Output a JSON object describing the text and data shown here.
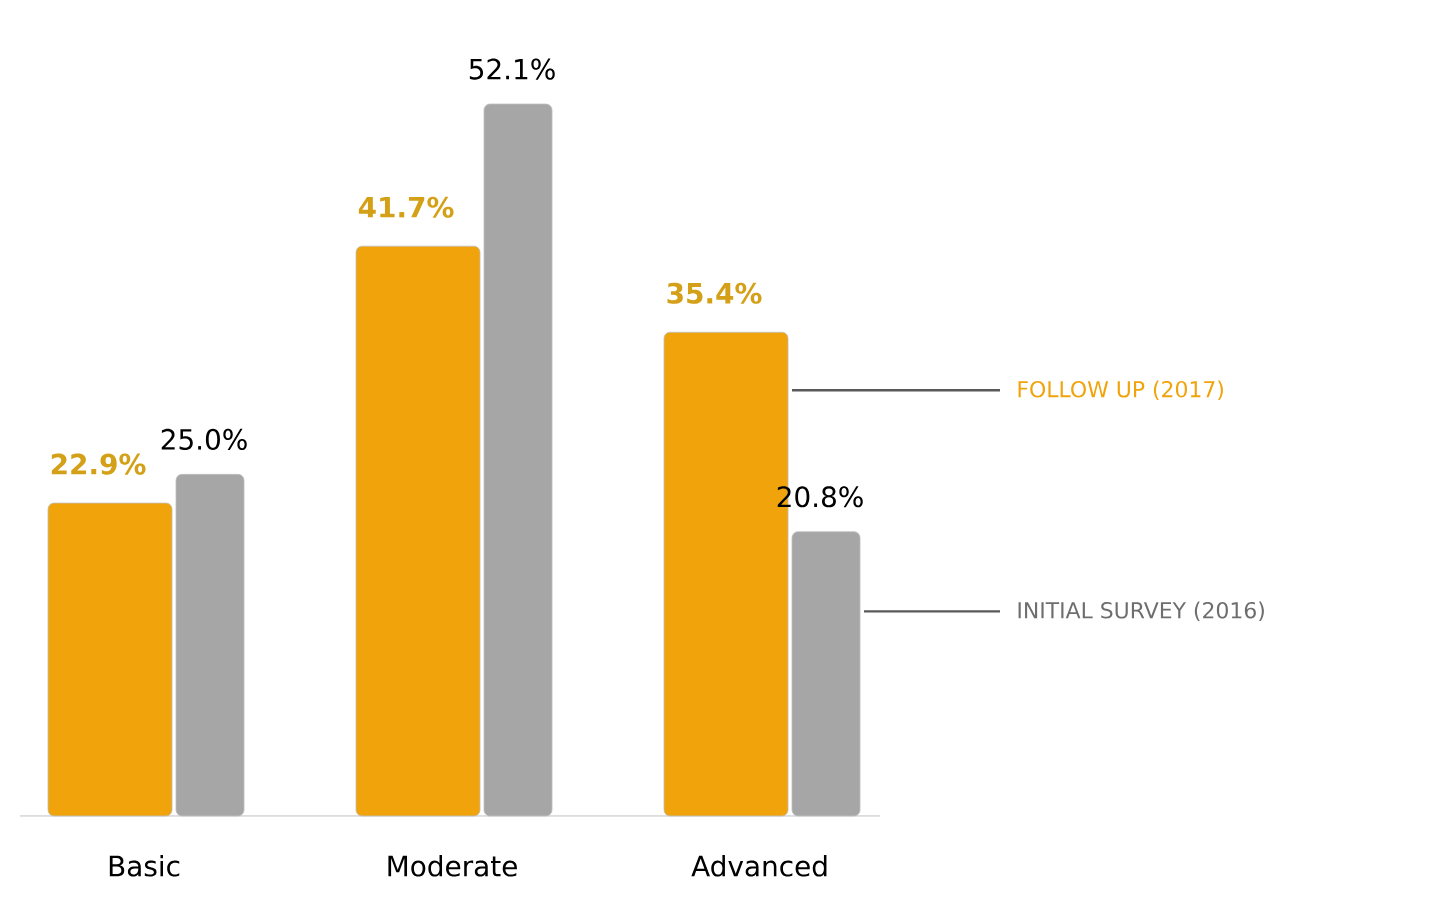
{
  "chart_data": {
    "type": "bar",
    "data_labels": true,
    "legend": "right",
    "categories": [
      "Basic",
      "Moderate",
      "Advanced"
    ],
    "series": [
      {
        "name": "FOLLOW UP (2017)",
        "color": "#f0a30a",
        "values": [
          22.9,
          41.7,
          35.4
        ],
        "value_labels": [
          "22.9%",
          "41.7%",
          "35.4%"
        ]
      },
      {
        "name": "INITIAL SURVEY (2016)",
        "color": "#a6a6a6",
        "values": [
          25.0,
          52.1,
          20.8
        ],
        "value_labels": [
          "25.0%",
          "52.1%",
          "20.8%"
        ]
      }
    ]
  }
}
